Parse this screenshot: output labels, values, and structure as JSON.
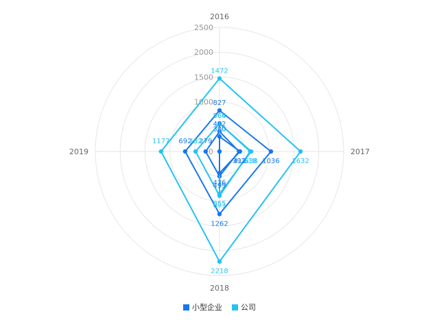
{
  "chart_data": {
    "type": "radar",
    "indicators": [
      "2016",
      "2017",
      "2018",
      "2019"
    ],
    "max": 2500,
    "ticks": [
      0,
      500,
      1000,
      1500,
      2000,
      2500
    ],
    "tick_labels": [
      "0",
      "",
      "1000",
      "1500",
      "2000",
      "2500"
    ],
    "series": [
      {
        "name": "小型企业",
        "color": "#1677ee",
        "values": [
          827,
          1036,
          1262,
          692
        ]
      },
      {
        "name": "公司",
        "color": "#22c3f0",
        "values": [
          1472,
          1632,
          2218,
          1177
        ]
      },
      {
        "name": "",
        "color": "#1677ee",
        "values": [
          402,
          392,
          499,
          279
        ]
      },
      {
        "name": "",
        "color": "#22c3f0",
        "values": [
          566,
          618,
          893,
          482
        ]
      },
      {
        "name": "",
        "color": "#22c3f0",
        "values": [
          564,
          638,
          855,
          0
        ]
      },
      {
        "name": "",
        "color": "#1677ee",
        "values": [
          300,
          412,
          436,
          0
        ]
      }
    ],
    "legend_position": "bottom",
    "grid": true
  },
  "legend": {
    "items": [
      {
        "label": "小型企业",
        "color": "#1677ee"
      },
      {
        "label": "公司",
        "color": "#22c3f0"
      }
    ]
  }
}
